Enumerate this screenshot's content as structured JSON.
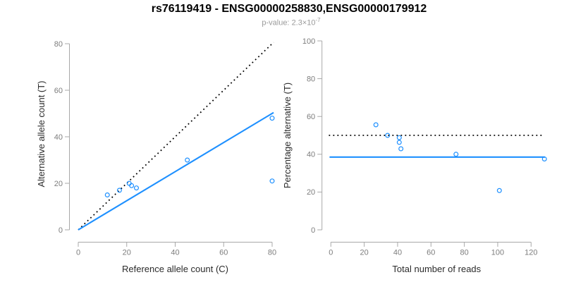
{
  "header": {
    "title": "rs76119419 - ENSG00000258830,ENSG00000179912",
    "subtitle": {
      "prefix": "p-value: ",
      "base": "2.3×10",
      "exponent": "-7"
    }
  },
  "colors": {
    "accent_blue": "#1E90FF",
    "reference_black": "#000000",
    "axis_gray": "#A8A8A8",
    "tick_label_gray": "#7D7D7D",
    "axis_title_dark": "#2B2B2B",
    "subtitle_gray": "#9A9A9A",
    "background": "#FFFFFF"
  },
  "chart_data": [
    {
      "id": "allele-counts",
      "type": "scatter",
      "title": "",
      "xlabel": "Reference allele count (C)",
      "ylabel": "Alternative allele count (T)",
      "xlim": [
        0,
        80
      ],
      "ylim": [
        0,
        80
      ],
      "xticks": [
        0,
        20,
        40,
        60,
        80
      ],
      "yticks": [
        0,
        20,
        40,
        60,
        80
      ],
      "grid": false,
      "legend": null,
      "point_color": "#1E90FF",
      "points": [
        [
          12,
          15
        ],
        [
          17,
          17
        ],
        [
          21,
          20
        ],
        [
          22,
          19
        ],
        [
          24,
          18
        ],
        [
          45,
          30
        ],
        [
          80,
          21
        ],
        [
          80,
          48
        ]
      ],
      "lines": [
        {
          "name": "identity-line",
          "style": "dotted",
          "color": "#000000",
          "x1": 0,
          "y1": 0,
          "x2": 80.6,
          "y2": 80.6,
          "meaning": "y = x"
        },
        {
          "name": "regression-line",
          "style": "solid",
          "color": "#1E90FF",
          "x1": 0,
          "y1": 0,
          "x2": 80.6,
          "y2": 50.4,
          "meaning": "fit slope 0.625"
        }
      ]
    },
    {
      "id": "percentage-alternative",
      "type": "scatter",
      "title": "",
      "xlabel": "Total number of reads",
      "ylabel": "Percentage alternative (T)",
      "xlim": [
        0,
        120
      ],
      "ylim": [
        0,
        100
      ],
      "xticks": [
        0,
        20,
        40,
        60,
        80,
        100,
        120
      ],
      "yticks": [
        0,
        20,
        40,
        60,
        80,
        100
      ],
      "grid": false,
      "legend": null,
      "point_color": "#1E90FF",
      "points": [
        [
          27,
          55.6
        ],
        [
          34,
          50
        ],
        [
          41,
          48.8
        ],
        [
          41,
          46.3
        ],
        [
          42,
          42.9
        ],
        [
          75,
          40
        ],
        [
          101,
          20.8
        ],
        [
          128,
          37.5
        ]
      ],
      "lines": [
        {
          "name": "fifty-percent-line",
          "style": "dotted",
          "color": "#000000",
          "x1": -1.2,
          "y1": 50,
          "x2": 127.2,
          "y2": 50,
          "meaning": "50% reference"
        },
        {
          "name": "mean-percentage-line",
          "style": "solid",
          "color": "#1E90FF",
          "x1": -0.8,
          "y1": 38.5,
          "x2": 128.3,
          "y2": 38.5,
          "meaning": "mean percentage 38.5%"
        }
      ]
    }
  ]
}
